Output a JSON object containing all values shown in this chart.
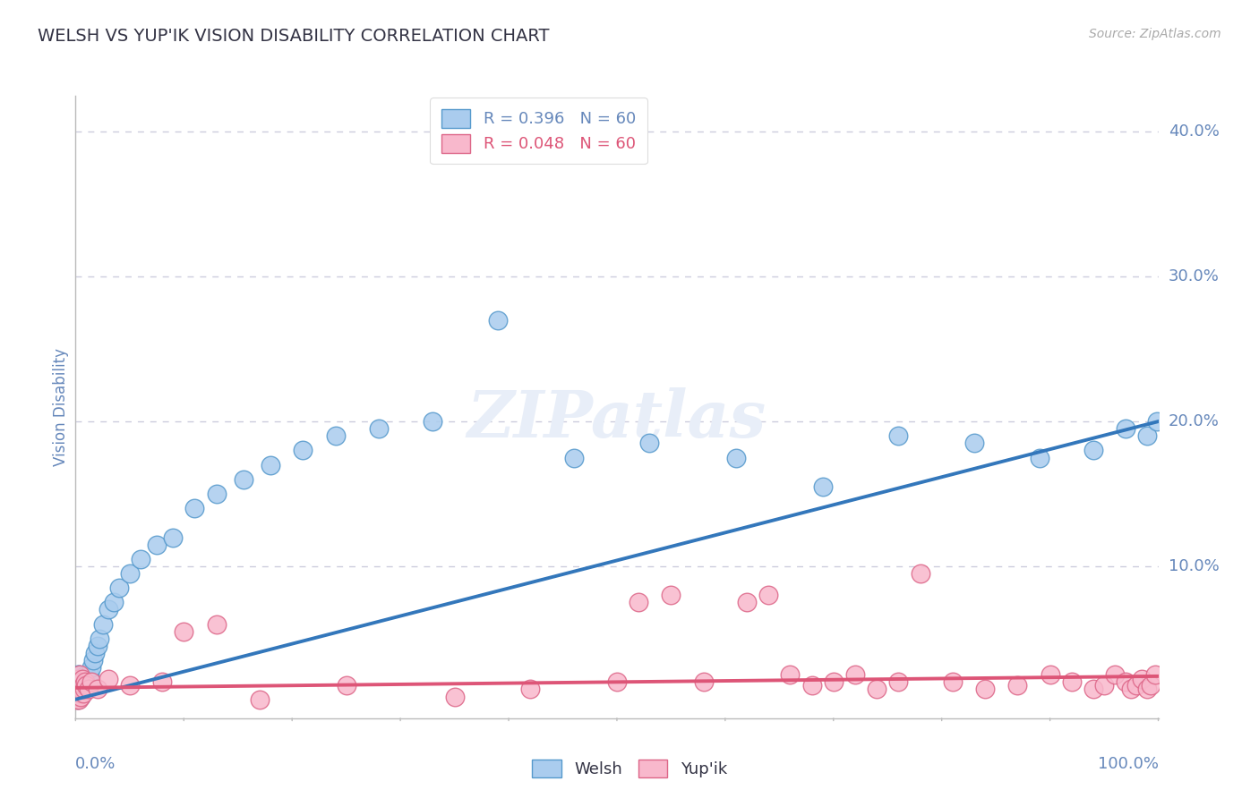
{
  "title": "WELSH VS YUP'IK VISION DISABILITY CORRELATION CHART",
  "source": "Source: ZipAtlas.com",
  "ylabel": "Vision Disability",
  "yticks": [
    0.0,
    0.1,
    0.2,
    0.3,
    0.4
  ],
  "ytick_labels": [
    "",
    "10.0%",
    "20.0%",
    "30.0%",
    "40.0%"
  ],
  "xlim": [
    0.0,
    1.0
  ],
  "ylim": [
    -0.005,
    0.425
  ],
  "welsh_R": 0.396,
  "welsh_N": 60,
  "yupik_R": 0.048,
  "yupik_N": 60,
  "welsh_color": "#aaccee",
  "yupik_color": "#f8b8cc",
  "welsh_edge_color": "#5599cc",
  "yupik_edge_color": "#dd6688",
  "trend_welsh_color": "#3377bb",
  "trend_yupik_color": "#dd5577",
  "title_color": "#333344",
  "axis_label_color": "#6688bb",
  "grid_color": "#ccccdd",
  "background_color": "#ffffff",
  "watermark_color": "#e8eef8",
  "welsh_x": [
    0.001,
    0.001,
    0.001,
    0.002,
    0.002,
    0.002,
    0.002,
    0.003,
    0.003,
    0.003,
    0.003,
    0.004,
    0.004,
    0.004,
    0.005,
    0.005,
    0.005,
    0.006,
    0.006,
    0.007,
    0.007,
    0.008,
    0.009,
    0.01,
    0.011,
    0.012,
    0.013,
    0.015,
    0.016,
    0.018,
    0.02,
    0.022,
    0.025,
    0.03,
    0.035,
    0.04,
    0.05,
    0.06,
    0.075,
    0.09,
    0.11,
    0.13,
    0.155,
    0.18,
    0.21,
    0.24,
    0.28,
    0.33,
    0.39,
    0.46,
    0.53,
    0.61,
    0.69,
    0.76,
    0.83,
    0.89,
    0.94,
    0.97,
    0.99,
    0.999
  ],
  "welsh_y": [
    0.01,
    0.015,
    0.02,
    0.008,
    0.012,
    0.018,
    0.025,
    0.01,
    0.015,
    0.02,
    0.025,
    0.012,
    0.018,
    0.022,
    0.01,
    0.015,
    0.02,
    0.012,
    0.018,
    0.015,
    0.02,
    0.018,
    0.022,
    0.025,
    0.02,
    0.018,
    0.025,
    0.03,
    0.035,
    0.04,
    0.045,
    0.05,
    0.06,
    0.07,
    0.075,
    0.085,
    0.095,
    0.105,
    0.115,
    0.12,
    0.14,
    0.15,
    0.16,
    0.17,
    0.18,
    0.19,
    0.195,
    0.2,
    0.27,
    0.175,
    0.185,
    0.175,
    0.155,
    0.19,
    0.185,
    0.175,
    0.18,
    0.195,
    0.19,
    0.2
  ],
  "yupik_x": [
    0.001,
    0.001,
    0.002,
    0.002,
    0.002,
    0.003,
    0.003,
    0.003,
    0.004,
    0.004,
    0.004,
    0.005,
    0.005,
    0.006,
    0.006,
    0.007,
    0.007,
    0.008,
    0.009,
    0.01,
    0.012,
    0.015,
    0.02,
    0.03,
    0.05,
    0.08,
    0.1,
    0.13,
    0.17,
    0.25,
    0.35,
    0.42,
    0.5,
    0.52,
    0.55,
    0.58,
    0.62,
    0.64,
    0.66,
    0.68,
    0.7,
    0.72,
    0.74,
    0.76,
    0.78,
    0.81,
    0.84,
    0.87,
    0.9,
    0.92,
    0.94,
    0.95,
    0.96,
    0.97,
    0.975,
    0.98,
    0.985,
    0.99,
    0.993,
    0.997
  ],
  "yupik_y": [
    0.008,
    0.015,
    0.01,
    0.018,
    0.022,
    0.008,
    0.015,
    0.02,
    0.012,
    0.018,
    0.025,
    0.01,
    0.02,
    0.015,
    0.022,
    0.012,
    0.018,
    0.015,
    0.02,
    0.018,
    0.015,
    0.02,
    0.015,
    0.022,
    0.018,
    0.02,
    0.055,
    0.06,
    0.008,
    0.018,
    0.01,
    0.015,
    0.02,
    0.075,
    0.08,
    0.02,
    0.075,
    0.08,
    0.025,
    0.018,
    0.02,
    0.025,
    0.015,
    0.02,
    0.095,
    0.02,
    0.015,
    0.018,
    0.025,
    0.02,
    0.015,
    0.018,
    0.025,
    0.02,
    0.015,
    0.018,
    0.022,
    0.015,
    0.018,
    0.025
  ]
}
